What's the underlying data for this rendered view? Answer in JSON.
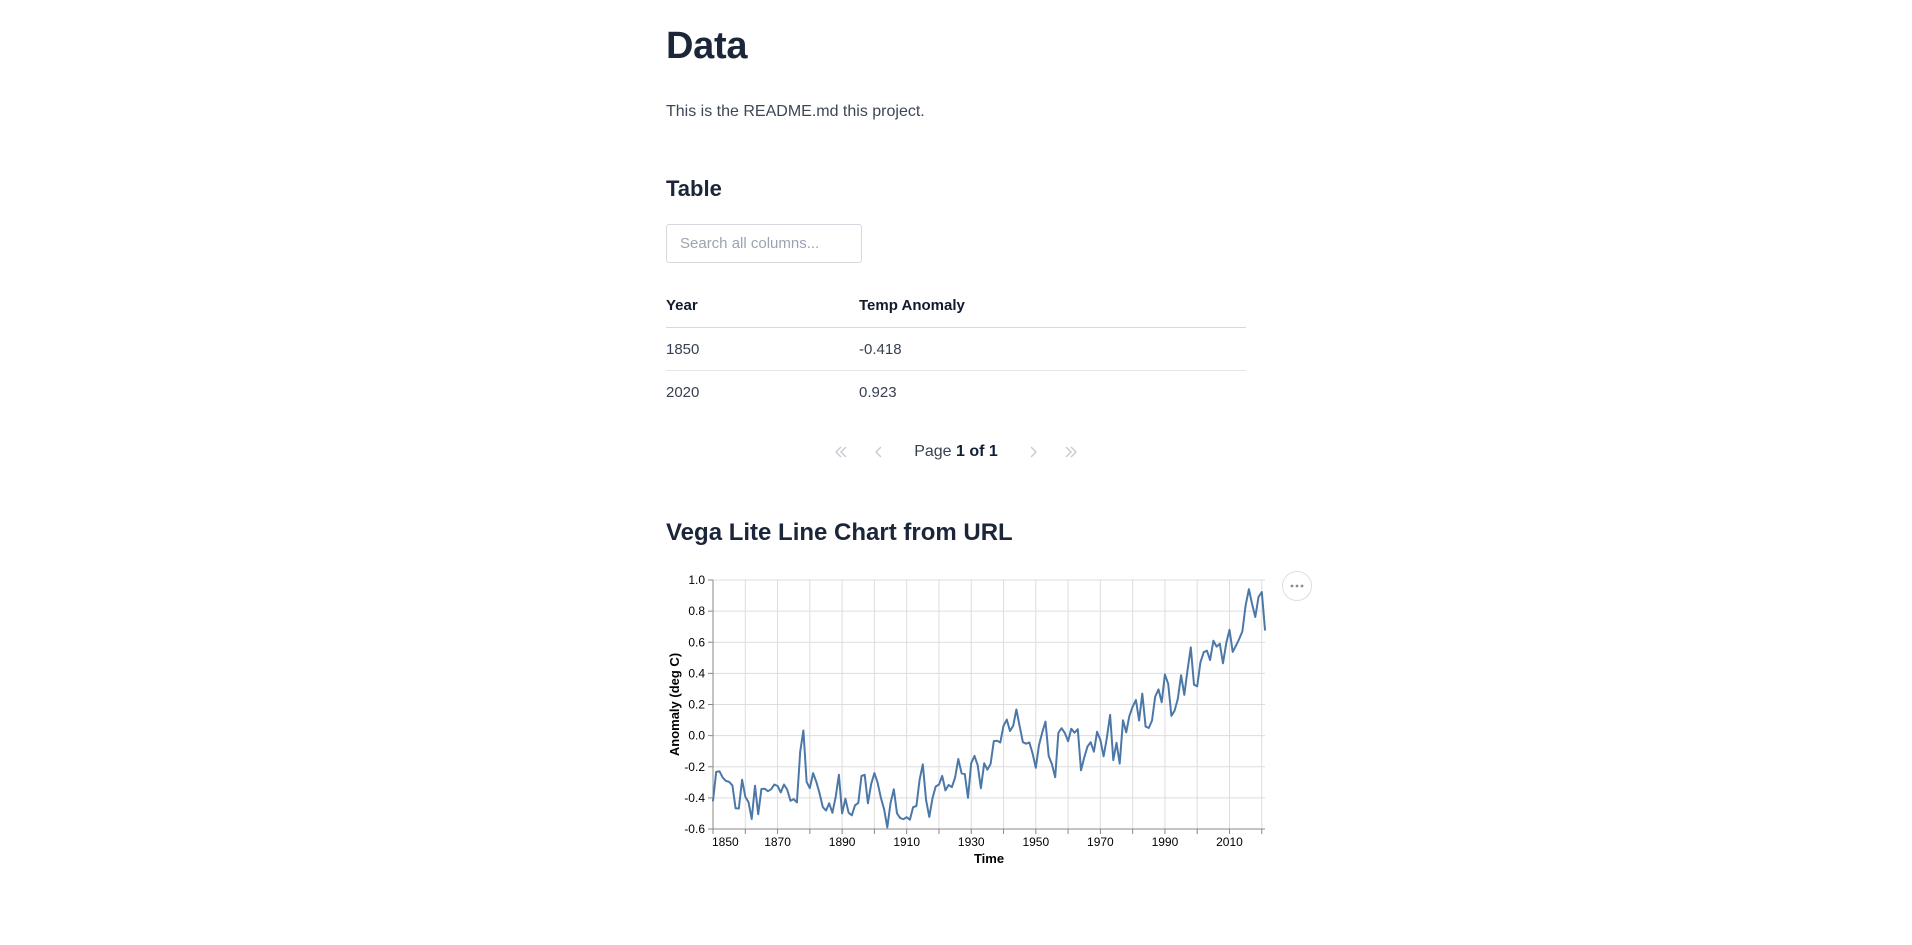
{
  "page": {
    "title": "Data",
    "intro": "This is the README.md this project."
  },
  "table_section": {
    "heading": "Table",
    "search_placeholder": "Search all columns...",
    "search_value": "",
    "columns": [
      "Year",
      "Temp Anomaly"
    ],
    "rows": [
      [
        "1850",
        "-0.418"
      ],
      [
        "2020",
        "0.923"
      ]
    ],
    "pagination": {
      "label": "Page",
      "value": "1 of 1"
    }
  },
  "chart_section": {
    "heading": "Vega Lite Line Chart from URL"
  },
  "chart_data": {
    "type": "line",
    "title": "",
    "xlabel": "Time",
    "ylabel": "Anomaly (deg C)",
    "xlim": [
      1850,
      2021
    ],
    "ylim": [
      -0.6,
      1.0
    ],
    "yticks": [
      -0.6,
      -0.4,
      -0.2,
      0.0,
      0.2,
      0.4,
      0.6,
      0.8,
      1.0
    ],
    "xtick_labels": [
      1850,
      1870,
      1890,
      1910,
      1930,
      1950,
      1970,
      1990,
      2010
    ],
    "xtick_step": 10,
    "grid": true,
    "legend": false,
    "line_color": "#4c78a8",
    "grid_color": "#dddddd",
    "axis_color": "#888888",
    "label_color": "#000000",
    "x": [
      1850,
      1851,
      1852,
      1853,
      1854,
      1855,
      1856,
      1857,
      1858,
      1859,
      1860,
      1861,
      1862,
      1863,
      1864,
      1865,
      1866,
      1867,
      1868,
      1869,
      1870,
      1871,
      1872,
      1873,
      1874,
      1875,
      1876,
      1877,
      1878,
      1879,
      1880,
      1881,
      1882,
      1883,
      1884,
      1885,
      1886,
      1887,
      1888,
      1889,
      1890,
      1891,
      1892,
      1893,
      1894,
      1895,
      1896,
      1897,
      1898,
      1899,
      1900,
      1901,
      1902,
      1903,
      1904,
      1905,
      1906,
      1907,
      1908,
      1909,
      1910,
      1911,
      1912,
      1913,
      1914,
      1915,
      1916,
      1917,
      1918,
      1919,
      1920,
      1921,
      1922,
      1923,
      1924,
      1925,
      1926,
      1927,
      1928,
      1929,
      1930,
      1931,
      1932,
      1933,
      1934,
      1935,
      1936,
      1937,
      1938,
      1939,
      1940,
      1941,
      1942,
      1943,
      1944,
      1945,
      1946,
      1947,
      1948,
      1949,
      1950,
      1951,
      1952,
      1953,
      1954,
      1955,
      1956,
      1957,
      1958,
      1959,
      1960,
      1961,
      1962,
      1963,
      1964,
      1965,
      1966,
      1967,
      1968,
      1969,
      1970,
      1971,
      1972,
      1973,
      1974,
      1975,
      1976,
      1977,
      1978,
      1979,
      1980,
      1981,
      1982,
      1983,
      1984,
      1985,
      1986,
      1987,
      1988,
      1989,
      1990,
      1991,
      1992,
      1993,
      1994,
      1995,
      1996,
      1997,
      1998,
      1999,
      2000,
      2001,
      2002,
      2003,
      2004,
      2005,
      2006,
      2007,
      2008,
      2009,
      2010,
      2011,
      2012,
      2013,
      2014,
      2015,
      2016,
      2017,
      2018,
      2019,
      2020,
      2021
    ],
    "y": [
      -0.418,
      -0.233,
      -0.229,
      -0.27,
      -0.291,
      -0.297,
      -0.32,
      -0.467,
      -0.468,
      -0.284,
      -0.392,
      -0.428,
      -0.536,
      -0.322,
      -0.505,
      -0.343,
      -0.341,
      -0.357,
      -0.345,
      -0.314,
      -0.324,
      -0.365,
      -0.314,
      -0.347,
      -0.419,
      -0.408,
      -0.429,
      -0.103,
      0.033,
      -0.297,
      -0.338,
      -0.241,
      -0.297,
      -0.369,
      -0.459,
      -0.482,
      -0.435,
      -0.496,
      -0.393,
      -0.252,
      -0.5,
      -0.405,
      -0.495,
      -0.512,
      -0.448,
      -0.432,
      -0.259,
      -0.252,
      -0.435,
      -0.31,
      -0.241,
      -0.302,
      -0.4,
      -0.473,
      -0.59,
      -0.434,
      -0.345,
      -0.499,
      -0.53,
      -0.537,
      -0.524,
      -0.54,
      -0.46,
      -0.452,
      -0.283,
      -0.185,
      -0.415,
      -0.522,
      -0.402,
      -0.327,
      -0.314,
      -0.259,
      -0.352,
      -0.317,
      -0.331,
      -0.269,
      -0.15,
      -0.242,
      -0.247,
      -0.4,
      -0.177,
      -0.13,
      -0.191,
      -0.338,
      -0.178,
      -0.219,
      -0.182,
      -0.035,
      -0.033,
      -0.044,
      0.063,
      0.103,
      0.03,
      0.064,
      0.168,
      0.059,
      -0.042,
      -0.052,
      -0.044,
      -0.115,
      -0.207,
      -0.061,
      0.022,
      0.09,
      -0.131,
      -0.183,
      -0.267,
      0.019,
      0.048,
      0.016,
      -0.036,
      0.044,
      0.019,
      0.041,
      -0.223,
      -0.142,
      -0.07,
      -0.042,
      -0.103,
      0.025,
      -0.029,
      -0.133,
      -0.017,
      0.133,
      -0.157,
      -0.046,
      -0.18,
      0.099,
      0.021,
      0.127,
      0.185,
      0.229,
      0.097,
      0.27,
      0.058,
      0.049,
      0.097,
      0.251,
      0.297,
      0.214,
      0.393,
      0.333,
      0.127,
      0.161,
      0.236,
      0.388,
      0.262,
      0.42,
      0.567,
      0.327,
      0.317,
      0.47,
      0.536,
      0.546,
      0.486,
      0.61,
      0.572,
      0.591,
      0.465,
      0.596,
      0.68,
      0.538,
      0.577,
      0.621,
      0.671,
      0.836,
      0.941,
      0.845,
      0.762,
      0.891,
      0.923,
      0.68
    ]
  },
  "colors": {
    "heading": "#1b2638",
    "body_text": "#3d4656",
    "line": "#4c78a8",
    "table_border": "#d7d9e0",
    "pagination_arrows": "#c5cad3"
  }
}
